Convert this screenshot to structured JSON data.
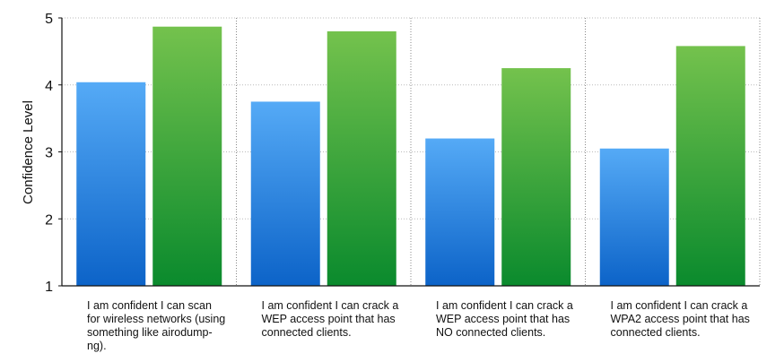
{
  "chart_data": {
    "type": "bar",
    "ylabel": "Confidence Level",
    "xlabel": "",
    "ylim": [
      1,
      5
    ],
    "yticks": [
      1,
      2,
      3,
      4,
      5
    ],
    "grid": true,
    "categories": [
      "I am confident I can scan for wireless networks (using something like airodump-ng).",
      "I am confident I can crack a WEP access point that has connected clients.",
      "I am confident I can crack a WEP access point that has NO connected clients.",
      "I am confident I can crack a WPA2 access point that has connected clients."
    ],
    "category_lines": [
      [
        "I am confident I can scan",
        "for wireless networks (using",
        "something like airodump-",
        "ng)."
      ],
      [
        "I am confident I can crack a",
        "WEP access point that has",
        "connected clients."
      ],
      [
        "I am confident I can crack a",
        "WEP access point that has",
        "NO connected clients."
      ],
      [
        "I am confident I can crack a",
        "WPA2 access point that has",
        "connected clients."
      ]
    ],
    "series": [
      {
        "values": [
          4.04,
          3.75,
          3.2,
          3.05
        ],
        "color_top": "#55aaf6",
        "color_bottom": "#0c63c8"
      },
      {
        "values": [
          4.87,
          4.8,
          4.25,
          4.58
        ],
        "color_top": "#74c24d",
        "color_bottom": "#0a8a2d"
      }
    ]
  }
}
